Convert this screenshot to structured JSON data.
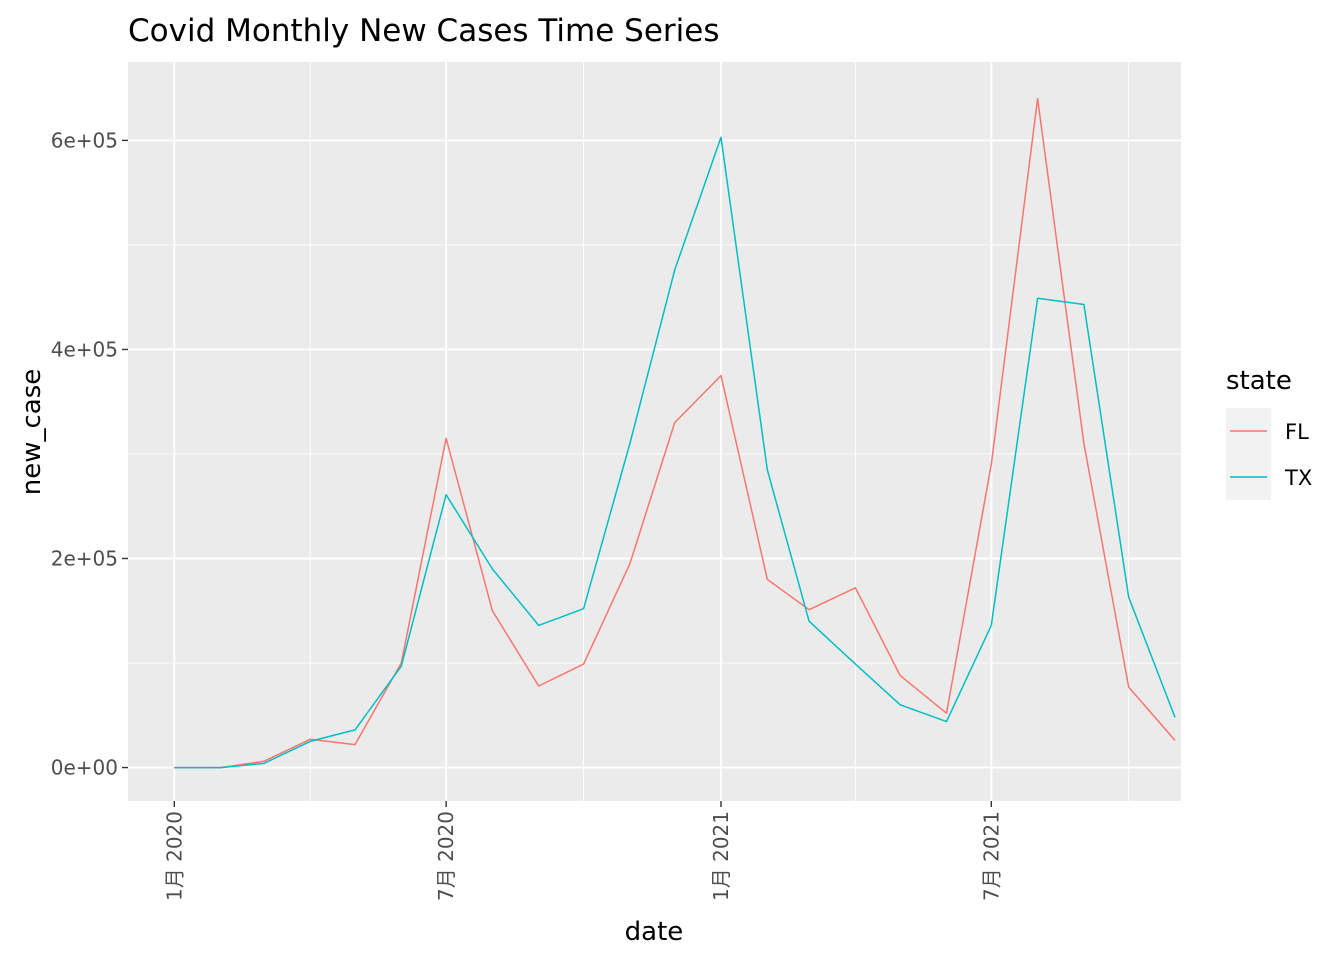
{
  "chart_data": {
    "type": "line",
    "title": "Covid Monthly New Cases Time Series",
    "xlabel": "date",
    "ylabel": "new_case",
    "ylim": [
      -32000,
      675000
    ],
    "xlim": [
      "2019-12-01",
      "2021-11-05"
    ],
    "y_ticks": [
      0,
      200000,
      400000,
      600000
    ],
    "y_tick_labels": [
      "0e+00",
      "2e+05",
      "4e+05",
      "6e+05"
    ],
    "x_ticks": [
      "2020-01-01",
      "2020-07-01",
      "2021-01-01",
      "2021-07-01"
    ],
    "x_tick_labels": [
      "1月 2020",
      "7月 2020",
      "1月 2021",
      "7月 2021"
    ],
    "x_minor_ticks": [
      "2020-04-01",
      "2020-10-01",
      "2021-04-01",
      "2021-10-01"
    ],
    "grid": true,
    "legend": {
      "title": "state",
      "position": "right"
    },
    "x": [
      "2020-01-01",
      "2020-02-01",
      "2020-03-01",
      "2020-04-01",
      "2020-05-01",
      "2020-06-01",
      "2020-07-01",
      "2020-08-01",
      "2020-09-01",
      "2020-10-01",
      "2020-11-01",
      "2020-12-01",
      "2021-01-01",
      "2021-02-01",
      "2021-03-01",
      "2021-04-01",
      "2021-05-01",
      "2021-06-01",
      "2021-07-01",
      "2021-08-01",
      "2021-09-01",
      "2021-10-01",
      "2021-11-01"
    ],
    "series": [
      {
        "name": "FL",
        "color": "#F8766D",
        "values": [
          0,
          0,
          6000,
          27000,
          22000,
          100000,
          315000,
          150000,
          78000,
          99000,
          195000,
          330000,
          375000,
          180000,
          151000,
          172000,
          88000,
          52000,
          290000,
          640000,
          310000,
          77000,
          26000
        ]
      },
      {
        "name": "TX",
        "color": "#00BFC4",
        "values": [
          0,
          0,
          4000,
          25000,
          36000,
          97000,
          261000,
          190000,
          136000,
          152000,
          310000,
          476000,
          603000,
          285000,
          140000,
          99000,
          60000,
          44000,
          136000,
          449000,
          443000,
          163000,
          48000
        ]
      }
    ]
  }
}
